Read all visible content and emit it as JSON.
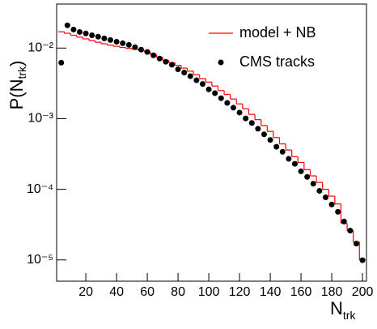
{
  "chart_data": {
    "type": "scatter",
    "x_label": {
      "main": "N",
      "sub": "trk"
    },
    "y_label": {
      "main": "P(N",
      "sub": "trk",
      "end": ")"
    },
    "xlim": [
      1,
      202.6
    ],
    "xticks": [
      20,
      40,
      60,
      80,
      100,
      120,
      140,
      160,
      180,
      200
    ],
    "ylim": [
      5e-06,
      0.042
    ],
    "log_y": true,
    "yticks": [
      {
        "value": 1e-05,
        "label": "10⁻⁵"
      },
      {
        "value": 0.0001,
        "label": "10⁻⁴"
      },
      {
        "value": 0.001,
        "label": "10⁻³"
      },
      {
        "value": 0.01,
        "label": "10⁻²"
      }
    ],
    "legend": "upper right",
    "series": [
      {
        "name": "model + NB",
        "type": "step",
        "color": "#ff0000",
        "bins": [
          2,
          6,
          10,
          14,
          18,
          22,
          26,
          30,
          34,
          38,
          42,
          46,
          50,
          54,
          58,
          62,
          66,
          70,
          74,
          78,
          82,
          86,
          90,
          94,
          98,
          102,
          106,
          110,
          114,
          118,
          122,
          126,
          130,
          134,
          138,
          142,
          146,
          150,
          154,
          158,
          162,
          166,
          170,
          174,
          178,
          182,
          186,
          190,
          194,
          198,
          202
        ],
        "values": [
          0.017,
          0.0162,
          0.0152,
          0.0143,
          0.0135,
          0.0128,
          0.0121,
          0.0115,
          0.011,
          0.0106,
          0.0102,
          0.0099,
          0.0096,
          0.0093,
          0.0088,
          0.0081,
          0.0074,
          0.0067,
          0.0062,
          0.0057,
          0.0052,
          0.0047,
          0.0042,
          0.0037,
          0.0033,
          0.0029,
          0.0025,
          0.0022,
          0.0019,
          0.00162,
          0.00138,
          0.00115,
          0.00097,
          0.0008,
          0.00066,
          0.00054,
          0.00044,
          0.00036,
          0.00029,
          0.00024,
          0.00019,
          0.000155,
          0.000125,
          0.0001,
          8e-05,
          6.2e-05,
          3.3e-05,
          2.6e-05,
          1.8e-05,
          1e-05
        ]
      },
      {
        "name": "CMS tracks",
        "type": "scatter",
        "color": "#000000",
        "x": [
          4,
          8,
          12,
          16,
          20,
          24,
          28,
          32,
          36,
          40,
          44,
          48,
          52,
          56,
          60,
          64,
          68,
          72,
          76,
          80,
          84,
          88,
          92,
          96,
          100,
          104,
          108,
          112,
          116,
          120,
          124,
          128,
          132,
          136,
          140,
          144,
          148,
          152,
          156,
          160,
          164,
          168,
          172,
          176,
          180,
          184,
          188,
          192,
          196,
          200
        ],
        "values": [
          0.0062,
          0.021,
          0.0183,
          0.0169,
          0.0161,
          0.0152,
          0.0145,
          0.0137,
          0.013,
          0.0123,
          0.0117,
          0.0111,
          0.0103,
          0.0095,
          0.0088,
          0.0079,
          0.0071,
          0.0064,
          0.0058,
          0.005,
          0.0045,
          0.004,
          0.0035,
          0.0031,
          0.0026,
          0.0023,
          0.00195,
          0.00167,
          0.00143,
          0.00122,
          0.00101,
          0.00087,
          0.00072,
          0.0006,
          0.0005,
          0.0004,
          0.00034,
          0.00027,
          0.00023,
          0.00018,
          0.00015,
          0.00012,
          9.5e-05,
          7.7e-05,
          6.1e-05,
          4.8e-05,
          3.5e-05,
          2.6e-05,
          1.7e-05,
          9.9e-06
        ]
      }
    ]
  }
}
